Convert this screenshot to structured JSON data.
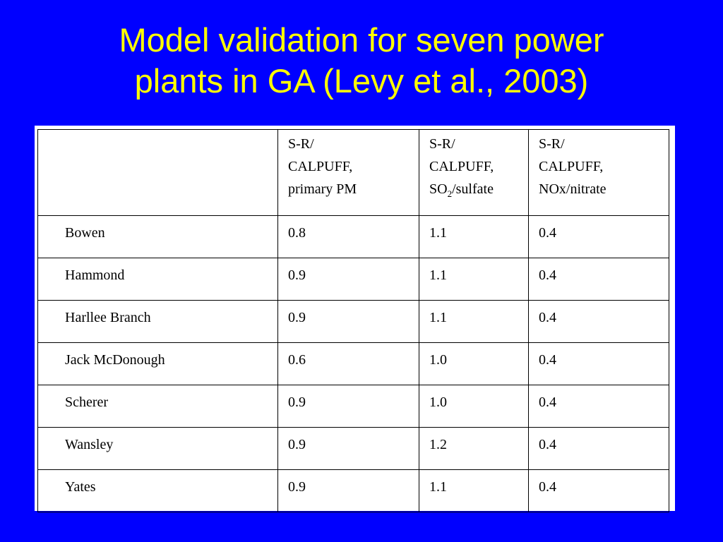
{
  "title": {
    "line1": "Model validation for seven power",
    "line2": "plants in GA (Levy et al., 2003)"
  },
  "table": {
    "header": {
      "blank": "",
      "col1": [
        "S-R/",
        "CALPUFF,",
        "primary PM"
      ],
      "col2": {
        "line1": "S-R/",
        "line2": "CALPUFF,",
        "line3_pre": "SO",
        "line3_sub": "2",
        "line3_post": "/sulfate"
      },
      "col3": [
        "S-R/",
        "CALPUFF,",
        "NOx/nitrate"
      ]
    },
    "rows": [
      {
        "plant": "Bowen",
        "pm": "0.8",
        "so2": "1.1",
        "nox": "0.4"
      },
      {
        "plant": "Hammond",
        "pm": "0.9",
        "so2": "1.1",
        "nox": "0.4"
      },
      {
        "plant": "Harllee Branch",
        "pm": "0.9",
        "so2": "1.1",
        "nox": "0.4"
      },
      {
        "plant": "Jack McDonough",
        "pm": "0.6",
        "so2": "1.0",
        "nox": "0.4"
      },
      {
        "plant": "Scherer",
        "pm": "0.9",
        "so2": "1.0",
        "nox": "0.4"
      },
      {
        "plant": "Wansley",
        "pm": "0.9",
        "so2": "1.2",
        "nox": "0.4"
      },
      {
        "plant": "Yates",
        "pm": "0.9",
        "so2": "1.1",
        "nox": "0.4"
      }
    ]
  },
  "colors": {
    "background": "#0000ff",
    "title": "#ffff00",
    "table_bg": "#ffffff"
  }
}
